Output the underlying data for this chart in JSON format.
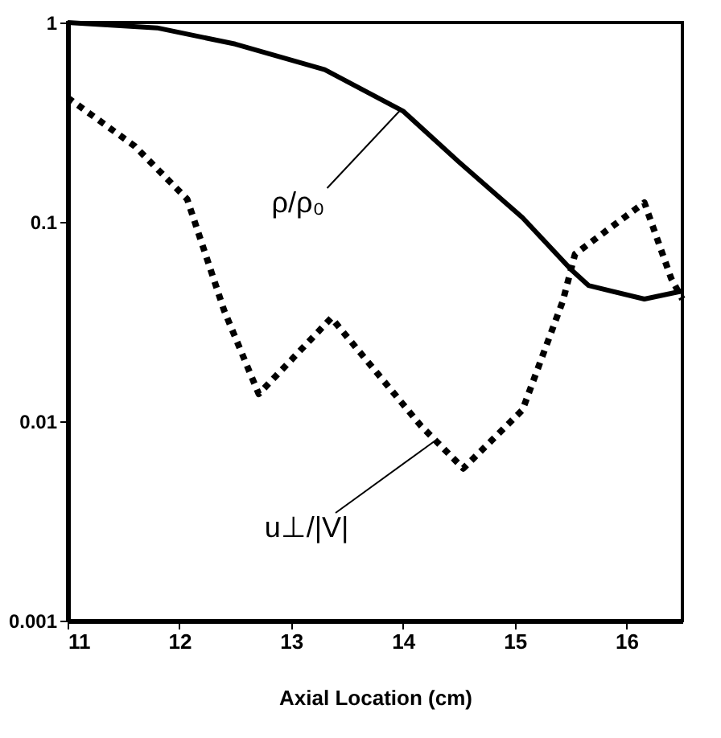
{
  "chart_data": {
    "type": "line",
    "xlabel": "Axial Location (cm)",
    "log": "y",
    "grid": false,
    "marker": "none",
    "xlim": [
      11,
      16.5
    ],
    "xticks": [
      11,
      12,
      13,
      14,
      15,
      16
    ],
    "ylim": [
      0.001,
      1
    ],
    "yticks": [
      0.001,
      0.01,
      0.1,
      1
    ],
    "series": [
      {
        "color": "#000000",
        "line_style": "solid",
        "x": [
          11.0,
          11.8,
          12.5,
          13.3,
          14.0,
          14.5,
          15.07,
          15.5,
          15.66,
          16.16,
          16.5
        ],
        "values": [
          1.0,
          0.94,
          0.78,
          0.58,
          0.36,
          0.2,
          0.105,
          0.058,
          0.048,
          0.041,
          0.045
        ]
      },
      {
        "color": "#000000",
        "line_style": "dotted",
        "x": [
          11.0,
          11.6,
          12.07,
          12.4,
          12.71,
          13.36,
          14.16,
          14.54,
          15.07,
          15.43,
          15.54,
          16.16,
          16.4,
          16.5
        ],
        "values": [
          0.42,
          0.24,
          0.13,
          0.036,
          0.0137,
          0.033,
          0.0095,
          0.0058,
          0.0114,
          0.04,
          0.069,
          0.125,
          0.052,
          0.041
        ]
      }
    ],
    "annotations": [
      {
        "text": "ρ/ρ₀",
        "x": 13.97,
        "y": 0.36
      },
      {
        "text": "u⊥/|V|",
        "x": 14.29,
        "y": 0.008
      }
    ]
  }
}
